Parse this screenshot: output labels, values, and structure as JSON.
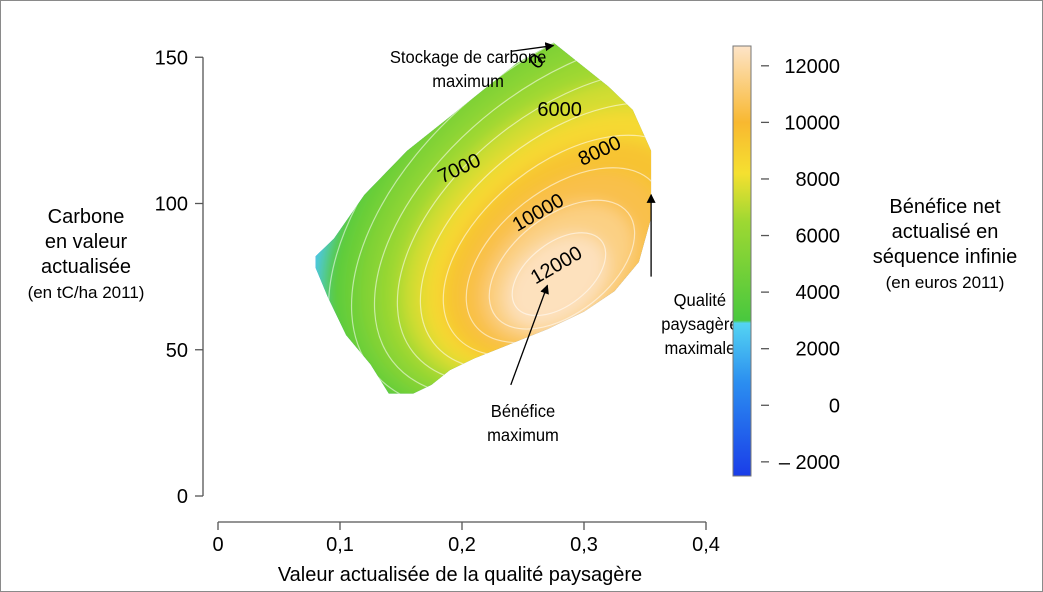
{
  "chart_data": {
    "type": "heatmap",
    "title": "",
    "xlabel": "Valeur actualisée de la qualité paysagère",
    "ylabel": [
      "Carbone",
      "en valeur",
      "actualisée",
      "(en tC/ha 2011)"
    ],
    "xlim": [
      0,
      0.4
    ],
    "ylim": [
      0,
      160
    ],
    "x_ticks": [
      0,
      0.1,
      0.2,
      0.3,
      0.4
    ],
    "x_tick_labels": [
      "0",
      "0,1",
      "0,2",
      "0,3",
      "0,4"
    ],
    "y_ticks": [
      0,
      50,
      100,
      150
    ],
    "y_tick_labels": [
      "0",
      "50",
      "100",
      "150"
    ],
    "colorbar": {
      "label": [
        "Bénéfice net",
        "actualisé en",
        "séquence infinie",
        "(en euros 2011)"
      ],
      "range": [
        -2500,
        12700
      ],
      "ticks": [
        12000,
        10000,
        8000,
        6000,
        4000,
        2000,
        0,
        -2000
      ],
      "tick_labels": [
        "12000",
        "10000",
        "8000",
        "6000",
        "4000",
        "2000",
        "0",
        "– 2000"
      ],
      "stops": [
        {
          "value": -2500,
          "color": "#1a3de8"
        },
        {
          "value": 800,
          "color": "#2b8ef0"
        },
        {
          "value": 2900,
          "color": "#54d4f2"
        },
        {
          "value": 3000,
          "color": "#49c83e"
        },
        {
          "value": 6500,
          "color": "#9ed832"
        },
        {
          "value": 8200,
          "color": "#f5e030"
        },
        {
          "value": 10000,
          "color": "#f8b830"
        },
        {
          "value": 12700,
          "color": "#fde4c8"
        }
      ]
    },
    "surface": {
      "peak": {
        "x": 0.275,
        "y": 70,
        "value": 13000
      },
      "boundary": [
        [
          0.275,
          155
        ],
        [
          0.29,
          150
        ],
        [
          0.32,
          140
        ],
        [
          0.34,
          132
        ],
        [
          0.355,
          118
        ],
        [
          0.355,
          95
        ],
        [
          0.345,
          80
        ],
        [
          0.325,
          70
        ],
        [
          0.3,
          63
        ],
        [
          0.27,
          57
        ],
        [
          0.24,
          52
        ],
        [
          0.21,
          47
        ],
        [
          0.19,
          43
        ],
        [
          0.175,
          38
        ],
        [
          0.16,
          35
        ],
        [
          0.14,
          35
        ],
        [
          0.125,
          45
        ],
        [
          0.105,
          55
        ],
        [
          0.09,
          68
        ],
        [
          0.08,
          78
        ],
        [
          0.08,
          82
        ],
        [
          0.095,
          88
        ],
        [
          0.12,
          103
        ],
        [
          0.155,
          118
        ],
        [
          0.185,
          128
        ],
        [
          0.215,
          138
        ],
        [
          0.245,
          148
        ]
      ],
      "contours": [
        {
          "label": "0",
          "x": 0.265,
          "y": 147,
          "angle": -45
        },
        {
          "label": "6000",
          "x": 0.28,
          "y": 130,
          "angle": 0
        },
        {
          "label": "7000",
          "x": 0.2,
          "y": 110,
          "angle": -25
        },
        {
          "label": "8000",
          "x": 0.315,
          "y": 116,
          "angle": -25
        },
        {
          "label": "10000",
          "x": 0.265,
          "y": 95,
          "angle": -30
        },
        {
          "label": "12000",
          "x": 0.28,
          "y": 77,
          "angle": -30
        }
      ]
    },
    "annotations": [
      {
        "lines": [
          "Stockage de carbone",
          "maximum"
        ],
        "text_x": 0.205,
        "text_y": 148,
        "arrow_from": [
          0.24,
          152
        ],
        "arrow_to": [
          0.275,
          154
        ]
      },
      {
        "lines": [
          "Qualité",
          "paysagère",
          "maximale"
        ],
        "text_x": 0.395,
        "text_y": 65,
        "arrow_from": [
          0.355,
          75
        ],
        "arrow_to": [
          0.355,
          103
        ]
      },
      {
        "lines": [
          "Bénéfice",
          "maximum"
        ],
        "text_x": 0.25,
        "text_y": 27,
        "arrow_from": [
          0.24,
          38
        ],
        "arrow_to": [
          0.27,
          72
        ]
      }
    ]
  }
}
